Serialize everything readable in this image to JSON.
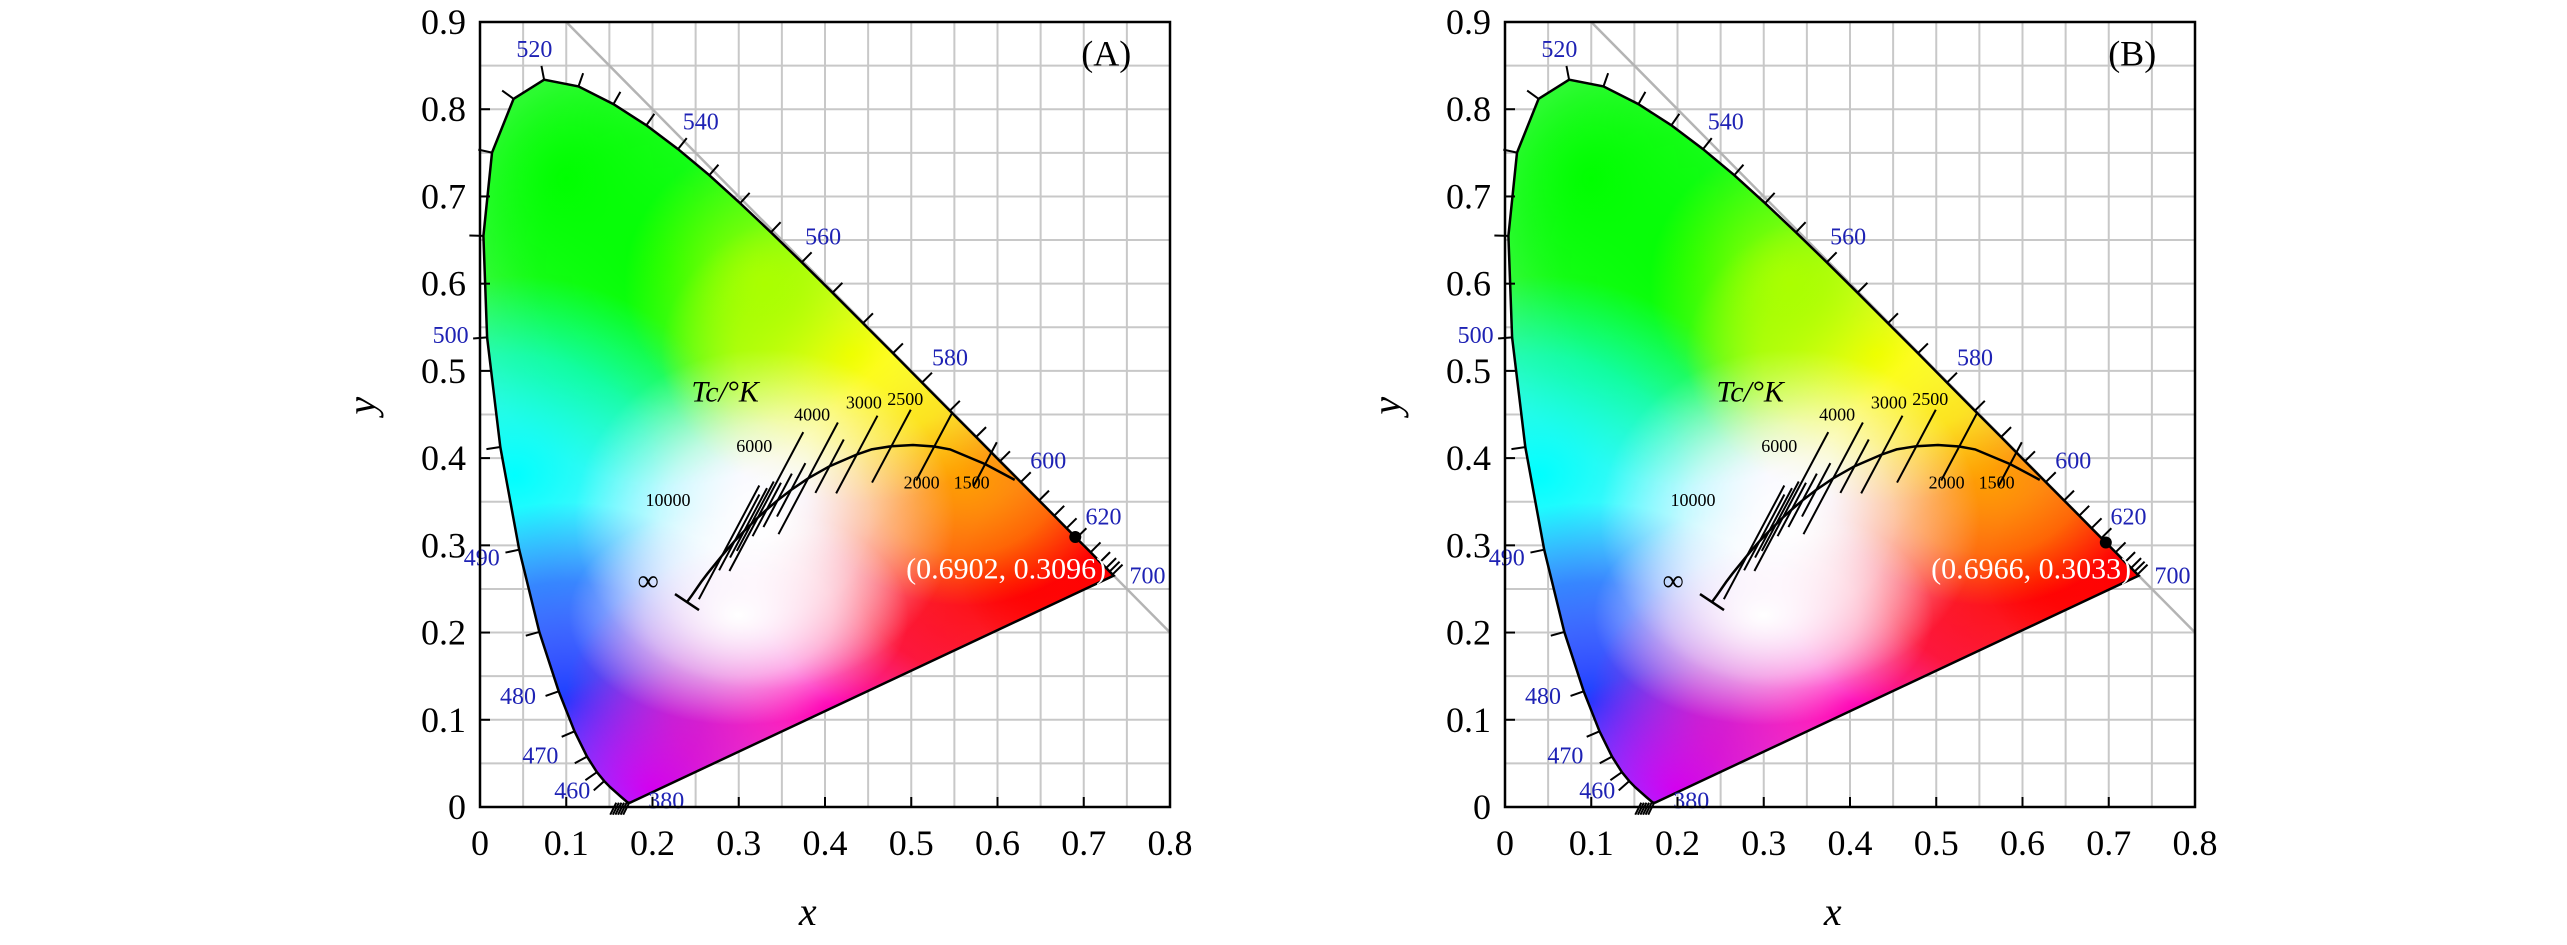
{
  "chart_data": [
    {
      "type": "scatter",
      "panel_label": "(A)",
      "xlabel": "x",
      "ylabel": "y",
      "xlim": [
        0,
        0.8
      ],
      "ylim": [
        0,
        0.9
      ],
      "x_ticks": [
        "0",
        "0.1",
        "0.2",
        "0.3",
        "0.4",
        "0.5",
        "0.6",
        "0.7",
        "0.8"
      ],
      "y_ticks": [
        "0",
        "0.1",
        "0.2",
        "0.3",
        "0.4",
        "0.5",
        "0.6",
        "0.7",
        "0.8",
        "0.9"
      ],
      "grid": true,
      "point": {
        "x": 0.6902,
        "y": 0.3096,
        "label": "(0.6902, 0.3096)"
      },
      "tc_label": "Tc/°K",
      "wavelength_labels": [
        "380",
        "460",
        "470",
        "480",
        "490",
        "500",
        "520",
        "540",
        "560",
        "580",
        "600",
        "620",
        "700"
      ],
      "cct_labels": [
        "∞",
        "10000",
        "6000",
        "4000",
        "3000",
        "2500",
        "2000",
        "1500"
      ]
    },
    {
      "type": "scatter",
      "panel_label": "(B)",
      "xlabel": "x",
      "ylabel": "y",
      "xlim": [
        0,
        0.8
      ],
      "ylim": [
        0,
        0.9
      ],
      "x_ticks": [
        "0",
        "0.1",
        "0.2",
        "0.3",
        "0.4",
        "0.5",
        "0.6",
        "0.7",
        "0.8"
      ],
      "y_ticks": [
        "0",
        "0.1",
        "0.2",
        "0.3",
        "0.4",
        "0.5",
        "0.6",
        "0.7",
        "0.8",
        "0.9"
      ],
      "grid": true,
      "point": {
        "x": 0.6966,
        "y": 0.3033,
        "label": "(0.6966, 0.3033)"
      },
      "tc_label": "Tc/°K",
      "wavelength_labels": [
        "380",
        "460",
        "470",
        "480",
        "490",
        "500",
        "520",
        "540",
        "560",
        "580",
        "600",
        "620",
        "700"
      ],
      "cct_labels": [
        "∞",
        "10000",
        "6000",
        "4000",
        "3000",
        "2500",
        "2000",
        "1500"
      ]
    }
  ],
  "colors": {
    "wavelength_labels": "#1e22b4",
    "grid": "#c8c8c8",
    "boundary": "#000000",
    "point_label": "#ffffff"
  }
}
